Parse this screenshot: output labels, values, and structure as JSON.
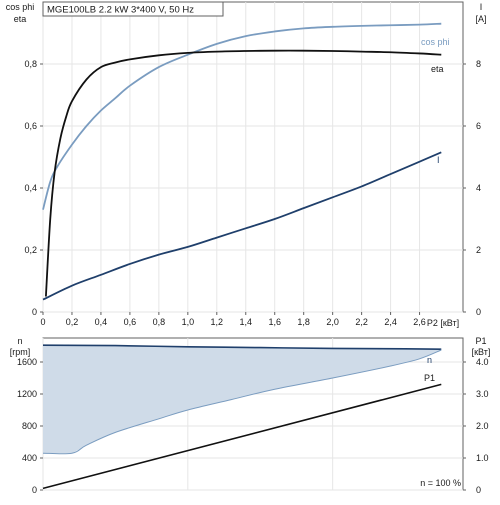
{
  "chart_data": [
    {
      "type": "line",
      "title": "MGE100LB   2.2 kW   3*400 V, 50 Hz",
      "ylabel_left": [
        "cos phi",
        "eta"
      ],
      "ylabel_right": [
        "I",
        "[A]"
      ],
      "xlabel": "P2 [кВт]",
      "xlim": [
        0,
        2.9
      ],
      "ylim_left": [
        0,
        1.0
      ],
      "ylim_right": [
        0,
        10
      ],
      "x_ticks": [
        "0",
        "0,2",
        "0,4",
        "0,6",
        "0,8",
        "1,0",
        "1,2",
        "1,4",
        "1,6",
        "1,8",
        "2,0",
        "2,2",
        "2,4",
        "2,6"
      ],
      "y_ticks_left": [
        "0",
        "0,2",
        "0,4",
        "0,6",
        "0,8"
      ],
      "y_ticks_right": [
        "0",
        "2",
        "4",
        "6",
        "8"
      ],
      "grid": true,
      "series": [
        {
          "name": "cos phi",
          "color": "#7a9cc0",
          "axis": "left",
          "x": [
            0,
            0.05,
            0.1,
            0.2,
            0.3,
            0.4,
            0.5,
            0.6,
            0.8,
            1.0,
            1.2,
            1.4,
            1.6,
            1.8,
            2.0,
            2.2,
            2.4,
            2.6,
            2.75
          ],
          "y": [
            0.33,
            0.42,
            0.47,
            0.54,
            0.6,
            0.65,
            0.69,
            0.73,
            0.79,
            0.83,
            0.865,
            0.89,
            0.905,
            0.915,
            0.92,
            0.923,
            0.925,
            0.927,
            0.93
          ]
        },
        {
          "name": "eta",
          "color": "#111111",
          "axis": "left",
          "x": [
            0.02,
            0.05,
            0.08,
            0.12,
            0.16,
            0.2,
            0.3,
            0.4,
            0.5,
            0.6,
            0.8,
            1.0,
            1.2,
            1.4,
            1.6,
            1.8,
            2.0,
            2.2,
            2.4,
            2.6,
            2.75
          ],
          "y": [
            0.05,
            0.3,
            0.45,
            0.56,
            0.63,
            0.68,
            0.75,
            0.79,
            0.805,
            0.815,
            0.828,
            0.836,
            0.84,
            0.842,
            0.843,
            0.843,
            0.842,
            0.84,
            0.838,
            0.834,
            0.83
          ]
        },
        {
          "name": "I",
          "color": "#1f3f6b",
          "axis": "right",
          "x": [
            0,
            0.2,
            0.4,
            0.6,
            0.8,
            1.0,
            1.2,
            1.4,
            1.6,
            1.8,
            2.0,
            2.2,
            2.4,
            2.6,
            2.75
          ],
          "y": [
            0.4,
            0.85,
            1.2,
            1.55,
            1.85,
            2.1,
            2.4,
            2.7,
            3.0,
            3.35,
            3.7,
            4.05,
            4.45,
            4.85,
            5.15
          ]
        }
      ]
    },
    {
      "type": "area",
      "ylabel_left": [
        "n",
        "[rpm]"
      ],
      "ylabel_right": [
        "P1",
        "[кВт]"
      ],
      "xlim": [
        0,
        2.9
      ],
      "ylim_left": [
        0,
        1900
      ],
      "ylim_right": [
        0,
        4.75
      ],
      "y_ticks_left": [
        "0",
        "400",
        "800",
        "1200",
        "1600"
      ],
      "y_ticks_right": [
        "0",
        "1.0",
        "2.0",
        "3.0",
        "4.0"
      ],
      "annotation": "n = 100 %",
      "grid": true,
      "series": [
        {
          "name": "n",
          "color": "#1f3f6b",
          "fill": "#cfdbe8",
          "axis": "left",
          "x_upper": [
            0,
            0.5,
            1.0,
            1.5,
            2.0,
            2.5,
            2.75
          ],
          "y_upper": [
            1810,
            1805,
            1790,
            1780,
            1770,
            1765,
            1760
          ],
          "x_lower": [
            0,
            0.2,
            0.3,
            0.5,
            0.8,
            1.0,
            1.3,
            1.6,
            2.0,
            2.4,
            2.6,
            2.75
          ],
          "y_lower": [
            460,
            460,
            560,
            720,
            890,
            1000,
            1130,
            1260,
            1400,
            1550,
            1640,
            1750
          ]
        },
        {
          "name": "P1",
          "color": "#111111",
          "axis": "right",
          "x": [
            0,
            2.75
          ],
          "y": [
            0.05,
            3.3
          ]
        }
      ]
    }
  ]
}
